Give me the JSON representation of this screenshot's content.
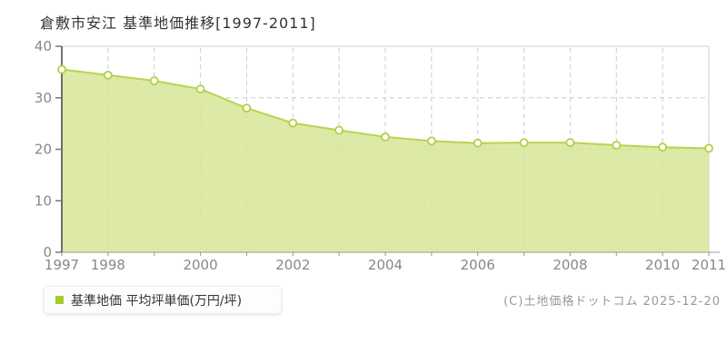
{
  "title": "倉敷市安江 基準地価推移[1997-2011]",
  "legend": {
    "label": "基準地価 平均坪単価(万円/坪)"
  },
  "copyright": "(C)土地価格ドットコム 2025-12-20",
  "chart_data": {
    "type": "area",
    "title": "倉敷市安江 基準地価推移[1997-2011]",
    "series_name": "基準地価 平均坪単価(万円/坪)",
    "unit": "万円/坪",
    "x": [
      1997,
      1998,
      1999,
      2000,
      2001,
      2002,
      2003,
      2004,
      2005,
      2006,
      2007,
      2008,
      2009,
      2010,
      2011
    ],
    "values": [
      35.5,
      34.4,
      33.3,
      31.7,
      28.0,
      25.1,
      23.7,
      22.4,
      21.6,
      21.2,
      21.3,
      21.3,
      20.8,
      20.4,
      20.2
    ],
    "ylim": [
      0,
      40
    ],
    "yticks": [
      0,
      10,
      20,
      30,
      40
    ],
    "xticks_labeled": [
      1997,
      1998,
      2000,
      2002,
      2004,
      2006,
      2008,
      2010,
      2011
    ],
    "grid": true,
    "legend_position": "bottom-left",
    "colors": {
      "area_fill": "#d7e597",
      "line": "#b6d54e",
      "marker_fill": "#ffffff",
      "marker_stroke": "#b0d145",
      "grid": "#cccccc",
      "plot_border": "#dddddd",
      "y_axis": "#444444",
      "x_axis": "#999999",
      "tick_label": "#888888",
      "title_color": "#333333",
      "legend_marker": "#a6c92c",
      "copyright_color": "#999999"
    }
  }
}
